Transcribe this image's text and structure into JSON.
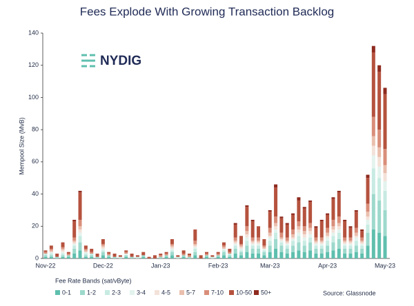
{
  "chart_data": {
    "type": "stacked_bar",
    "title": "Fees Explode With Growing Transaction Backlog",
    "y_label": "Mempool Size (MvB)",
    "legend_title": "Fee Rate Bands (sat/vByte)",
    "logo_text": "NYDIG",
    "source": "Source: Glassnode",
    "ylim": [
      0,
      140
    ],
    "yticks": [
      0,
      20,
      40,
      60,
      80,
      100,
      120,
      140
    ],
    "categories": [
      "Nov-22",
      null,
      null,
      null,
      null,
      null,
      null,
      null,
      null,
      null,
      "Dec-22",
      null,
      null,
      null,
      null,
      null,
      null,
      null,
      null,
      null,
      "Jan-23",
      null,
      null,
      null,
      null,
      null,
      null,
      null,
      null,
      null,
      "Feb-23",
      null,
      null,
      null,
      null,
      null,
      null,
      null,
      null,
      "Mar-23",
      null,
      null,
      null,
      null,
      null,
      null,
      null,
      null,
      null,
      "Apr-23",
      null,
      null,
      null,
      null,
      null,
      null,
      null,
      null,
      null,
      "May-23"
    ],
    "series": [
      {
        "name": "0-1",
        "color": "#5fbfae",
        "values": [
          1,
          1,
          0,
          1,
          1,
          3,
          5,
          1,
          1,
          0,
          2,
          1,
          0,
          0,
          1,
          0,
          0,
          1,
          0,
          0,
          0,
          1,
          2,
          0,
          1,
          0,
          2,
          0,
          1,
          0,
          1,
          2,
          1,
          3,
          2,
          4,
          3,
          3,
          2,
          4,
          6,
          4,
          3,
          4,
          5,
          4,
          5,
          3,
          3,
          4,
          5,
          6,
          3,
          3,
          4,
          3,
          8,
          18,
          16,
          14
        ]
      },
      {
        "name": "1-2",
        "color": "#9dd9cc",
        "values": [
          1,
          1,
          1,
          1,
          1,
          3,
          5,
          1,
          1,
          1,
          2,
          1,
          1,
          0,
          1,
          1,
          0,
          1,
          0,
          0,
          1,
          1,
          2,
          0,
          1,
          1,
          2,
          0,
          1,
          0,
          1,
          2,
          1,
          3,
          2,
          4,
          3,
          3,
          2,
          4,
          6,
          4,
          3,
          4,
          5,
          4,
          5,
          3,
          3,
          4,
          5,
          6,
          3,
          3,
          4,
          3,
          8,
          22,
          20,
          16
        ]
      },
      {
        "name": "2-3",
        "color": "#c7ebe2",
        "values": [
          1,
          1,
          0,
          1,
          0,
          2,
          4,
          1,
          1,
          0,
          1,
          0,
          0,
          1,
          0,
          0,
          1,
          0,
          0,
          0,
          0,
          0,
          1,
          1,
          0,
          0,
          2,
          0,
          0,
          1,
          0,
          1,
          1,
          2,
          1,
          3,
          2,
          2,
          1,
          3,
          4,
          2,
          2,
          3,
          4,
          3,
          3,
          2,
          2,
          3,
          4,
          4,
          2,
          2,
          3,
          2,
          5,
          16,
          14,
          12
        ]
      },
      {
        "name": "3-4",
        "color": "#e3f3ee",
        "values": [
          0,
          1,
          0,
          1,
          0,
          1,
          2,
          1,
          0,
          0,
          1,
          0,
          0,
          0,
          1,
          0,
          0,
          0,
          0,
          0,
          0,
          0,
          1,
          0,
          0,
          0,
          1,
          0,
          0,
          0,
          0,
          1,
          0,
          1,
          1,
          2,
          1,
          1,
          1,
          2,
          2,
          1,
          1,
          1,
          2,
          2,
          2,
          1,
          1,
          2,
          2,
          2,
          1,
          1,
          2,
          1,
          3,
          8,
          7,
          6
        ]
      },
      {
        "name": "4-5",
        "color": "#f3e2d9",
        "values": [
          0,
          0,
          0,
          1,
          0,
          1,
          2,
          0,
          0,
          0,
          1,
          0,
          0,
          0,
          0,
          0,
          0,
          0,
          0,
          0,
          0,
          0,
          1,
          0,
          0,
          0,
          1,
          0,
          0,
          0,
          0,
          0,
          0,
          1,
          1,
          2,
          1,
          1,
          0,
          1,
          2,
          1,
          1,
          1,
          2,
          2,
          2,
          1,
          1,
          1,
          2,
          2,
          1,
          1,
          1,
          1,
          2,
          6,
          6,
          5
        ]
      },
      {
        "name": "5-7",
        "color": "#eabfae",
        "values": [
          0,
          1,
          0,
          1,
          0,
          1,
          2,
          1,
          0,
          0,
          1,
          0,
          0,
          0,
          0,
          0,
          0,
          0,
          0,
          0,
          0,
          0,
          1,
          0,
          0,
          0,
          1,
          0,
          0,
          0,
          0,
          1,
          0,
          1,
          1,
          2,
          1,
          1,
          1,
          2,
          2,
          1,
          1,
          2,
          2,
          2,
          2,
          1,
          1,
          2,
          2,
          2,
          1,
          1,
          2,
          1,
          3,
          6,
          6,
          5
        ]
      },
      {
        "name": "7-10",
        "color": "#d98e7a",
        "values": [
          1,
          1,
          0,
          1,
          1,
          2,
          4,
          1,
          1,
          0,
          1,
          1,
          0,
          0,
          1,
          0,
          0,
          0,
          0,
          0,
          1,
          1,
          1,
          0,
          1,
          1,
          2,
          0,
          1,
          0,
          1,
          1,
          1,
          2,
          1,
          3,
          2,
          2,
          1,
          3,
          4,
          3,
          2,
          3,
          3,
          3,
          3,
          2,
          2,
          3,
          4,
          4,
          2,
          2,
          3,
          2,
          5,
          12,
          11,
          10
        ]
      },
      {
        "name": "10-50",
        "color": "#b5523e",
        "values": [
          1,
          2,
          2,
          3,
          1,
          10,
          17,
          2,
          2,
          2,
          3,
          1,
          2,
          1,
          1,
          2,
          1,
          2,
          1,
          2,
          1,
          1,
          3,
          1,
          2,
          1,
          7,
          2,
          1,
          1,
          1,
          2,
          2,
          8,
          5,
          12,
          10,
          7,
          4,
          10,
          18,
          9,
          8,
          9,
          13,
          11,
          13,
          6,
          10,
          8,
          13,
          15,
          10,
          6,
          10,
          4,
          16,
          40,
          36,
          34
        ]
      },
      {
        "name": "50+",
        "color": "#8e2a1f",
        "values": [
          0,
          0,
          0,
          0,
          0,
          1,
          1,
          0,
          0,
          0,
          0,
          0,
          0,
          0,
          0,
          0,
          0,
          0,
          0,
          0,
          0,
          0,
          0,
          0,
          0,
          0,
          0,
          0,
          0,
          0,
          0,
          0,
          0,
          1,
          0,
          1,
          1,
          0,
          0,
          1,
          2,
          1,
          1,
          1,
          2,
          1,
          1,
          1,
          1,
          1,
          1,
          1,
          1,
          1,
          1,
          1,
          2,
          4,
          4,
          4
        ]
      }
    ]
  }
}
